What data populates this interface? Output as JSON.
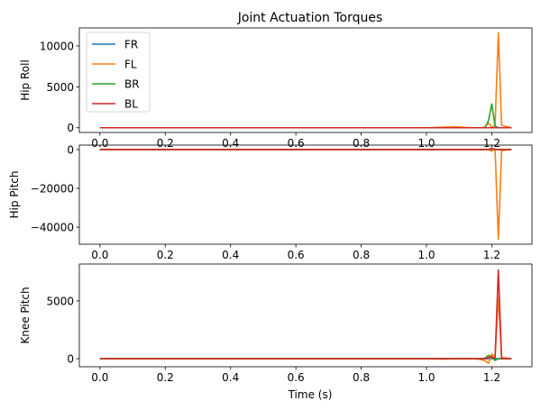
{
  "chart_data": {
    "type": "line",
    "title": "Joint Actuation Torques",
    "xlabel": "Time (s)",
    "xlim": [
      -0.063,
      1.323
    ],
    "xticks": [
      0.0,
      0.2,
      0.4,
      0.6,
      0.8,
      1.0,
      1.2
    ],
    "xtick_labels": [
      "0.0",
      "0.2",
      "0.4",
      "0.6",
      "0.8",
      "1.0",
      "1.2"
    ],
    "legend": {
      "placement": "upper-left",
      "entries": [
        "FR",
        "FL",
        "BR",
        "BL"
      ]
    },
    "colors": {
      "FR": "#1f77b4",
      "FL": "#ff7f0e",
      "BR": "#2ca02c",
      "BL": "#d62728"
    },
    "x": [
      0.0,
      0.1,
      0.2,
      0.3,
      0.4,
      0.5,
      0.6,
      0.7,
      0.8,
      0.9,
      1.0,
      1.05,
      1.09,
      1.12,
      1.15,
      1.17,
      1.18,
      1.19,
      1.2,
      1.21,
      1.22,
      1.23,
      1.26
    ],
    "panels": [
      {
        "ylabel": "Hip Roll",
        "ylim": [
          -580,
          12200
        ],
        "yticks": [
          0,
          5000,
          10000
        ],
        "ytick_labels": [
          "0",
          "5000",
          "10000"
        ],
        "series": [
          {
            "name": "FR",
            "values": [
              0,
              0,
              0,
              0,
              0,
              0,
              0,
              0,
              0,
              0,
              0,
              0,
              0,
              0,
              0,
              0,
              0,
              0,
              20,
              0,
              0,
              0,
              0
            ]
          },
          {
            "name": "FL",
            "values": [
              0,
              0,
              0,
              0,
              0,
              0,
              0,
              0,
              0,
              0,
              0,
              60,
              120,
              40,
              0,
              0,
              100,
              600,
              50,
              300,
              11600,
              300,
              0
            ]
          },
          {
            "name": "BR",
            "values": [
              0,
              0,
              0,
              0,
              0,
              0,
              0,
              0,
              0,
              0,
              0,
              0,
              0,
              0,
              0,
              0,
              50,
              900,
              2900,
              200,
              0,
              0,
              0
            ]
          },
          {
            "name": "BL",
            "values": [
              0,
              0,
              0,
              0,
              0,
              0,
              0,
              0,
              0,
              0,
              0,
              0,
              0,
              0,
              0,
              0,
              0,
              0,
              0,
              0,
              0,
              0,
              0
            ]
          }
        ]
      },
      {
        "ylabel": "Hip Pitch",
        "ylim": [
          -48800,
          2300
        ],
        "yticks": [
          -40000,
          -20000,
          0
        ],
        "ytick_labels": [
          "−40000",
          "−20000",
          "0"
        ],
        "series": [
          {
            "name": "FR",
            "values": [
              0,
              0,
              0,
              0,
              0,
              0,
              0,
              0,
              0,
              0,
              0,
              0,
              0,
              0,
              0,
              0,
              0,
              0,
              0,
              0,
              0,
              0,
              0
            ]
          },
          {
            "name": "FL",
            "values": [
              0,
              0,
              0,
              0,
              0,
              0,
              0,
              0,
              0,
              0,
              0,
              0,
              0,
              0,
              0,
              0,
              0,
              -200,
              -800,
              300,
              -46200,
              -500,
              0
            ]
          },
          {
            "name": "BR",
            "values": [
              0,
              0,
              0,
              0,
              0,
              0,
              0,
              0,
              0,
              0,
              0,
              0,
              0,
              0,
              0,
              0,
              0,
              0,
              400,
              0,
              0,
              0,
              0
            ]
          },
          {
            "name": "BL",
            "values": [
              0,
              0,
              0,
              0,
              0,
              0,
              0,
              0,
              0,
              0,
              0,
              0,
              0,
              0,
              0,
              0,
              0,
              100,
              700,
              100,
              0,
              0,
              0
            ]
          }
        ]
      },
      {
        "ylabel": "Knee Pitch",
        "ylim": [
          -700,
          8200
        ],
        "yticks": [
          0,
          5000
        ],
        "ytick_labels": [
          "0",
          "5000"
        ],
        "series": [
          {
            "name": "FR",
            "values": [
              0,
              0,
              0,
              0,
              0,
              0,
              0,
              0,
              0,
              0,
              0,
              0,
              0,
              0,
              0,
              0,
              0,
              0,
              0,
              0,
              0,
              0,
              0
            ]
          },
          {
            "name": "FL",
            "values": [
              0,
              0,
              0,
              0,
              0,
              0,
              0,
              0,
              0,
              0,
              0,
              -40,
              0,
              0,
              0,
              -100,
              -200,
              -400,
              400,
              200,
              5300,
              100,
              0
            ]
          },
          {
            "name": "BR",
            "values": [
              0,
              0,
              0,
              0,
              0,
              0,
              0,
              0,
              0,
              0,
              0,
              0,
              0,
              0,
              0,
              0,
              50,
              300,
              100,
              -150,
              0,
              0,
              0
            ]
          },
          {
            "name": "BL",
            "values": [
              0,
              0,
              0,
              0,
              0,
              0,
              0,
              0,
              0,
              0,
              0,
              0,
              0,
              0,
              0,
              0,
              0,
              100,
              200,
              0,
              7700,
              0,
              0
            ]
          }
        ]
      }
    ]
  }
}
